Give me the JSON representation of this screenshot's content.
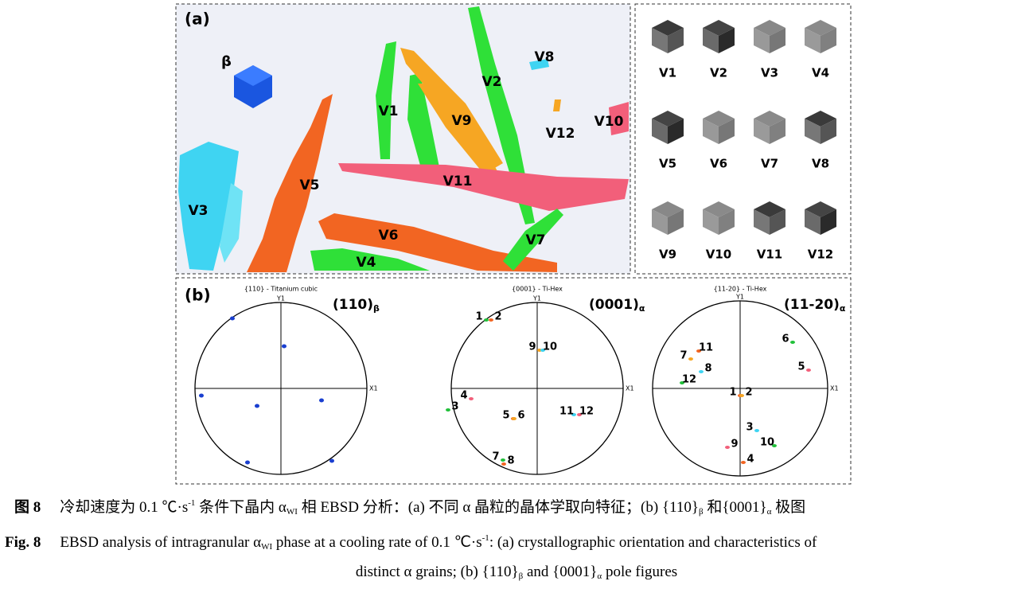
{
  "panel_a": {
    "label": "(a)",
    "beta_label": "β",
    "variant_labels": [
      "V1",
      "V2",
      "V3",
      "V4",
      "V5",
      "V6",
      "V7",
      "V8",
      "V9",
      "V10",
      "V11",
      "V12"
    ]
  },
  "panel_a_orientations": {
    "labels": [
      "V1",
      "V2",
      "V3",
      "V4",
      "V5",
      "V6",
      "V7",
      "V8",
      "V9",
      "V10",
      "V11",
      "V12"
    ]
  },
  "panel_b": {
    "label": "(b)",
    "pole_figures": [
      {
        "title": "{110} - Titanium cubic",
        "heading": "(110)",
        "heading_sub": "β",
        "y_axis": "Y1",
        "x_axis": "X1"
      },
      {
        "title": "{0001} - Ti-Hex",
        "heading": "(0001)",
        "heading_sub": "α",
        "y_axis": "Y1",
        "x_axis": "X1",
        "point_labels": [
          "1",
          "2",
          "9",
          "10",
          "4",
          "3",
          "5",
          "6",
          "11",
          "12",
          "7",
          "8"
        ]
      },
      {
        "title": "{11-20} - Ti-Hex",
        "heading": "(11-20)",
        "heading_sub": "α",
        "y_axis": "Y1",
        "x_axis": "X1",
        "point_labels": [
          "6",
          "11",
          "7",
          "8",
          "5",
          "12",
          "1",
          "2",
          "3",
          "9",
          "10",
          "4"
        ]
      }
    ]
  },
  "caption_cn": {
    "figure": "图 8",
    "lines": [
      [
        {
          "text": "冷却速度为 0.1 ℃·s"
        },
        {
          "text": "-1",
          "style": "sup"
        },
        {
          "text": " 条件下晶内 α"
        },
        {
          "text": "WI",
          "style": "sub"
        },
        {
          "text": " 相 EBSD 分析：(a) 不同 α 晶粒的晶体学取向特征；(b) {110}"
        },
        {
          "text": "β",
          "style": "sub"
        },
        {
          "text": " 和{0001}"
        },
        {
          "text": "α",
          "style": "sub"
        },
        {
          "text": " 极图"
        }
      ]
    ]
  },
  "caption_en": {
    "figure": "Fig. 8",
    "lines": [
      [
        {
          "text": "EBSD analysis of intragranular α"
        },
        {
          "text": "WI",
          "style": "sub"
        },
        {
          "text": " phase at a cooling rate of 0.1 ℃·s"
        },
        {
          "text": "-1",
          "style": "sup"
        },
        {
          "text": ": (a) crystallographic orientation and characteristics of"
        }
      ],
      [
        {
          "text": "distinct α grains; (b) {110}"
        },
        {
          "text": "β",
          "style": "sub"
        },
        {
          "text": " and {0001}"
        },
        {
          "text": "α",
          "style": "sub"
        },
        {
          "text": " pole figures"
        }
      ]
    ]
  }
}
